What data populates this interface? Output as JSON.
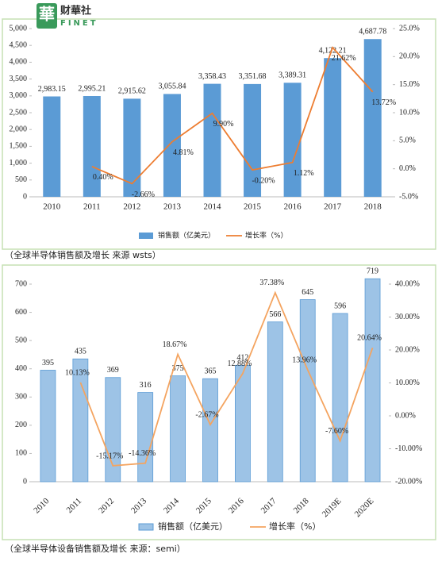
{
  "logo": {
    "mark": "華",
    "name": "财華社",
    "sub": "FINET"
  },
  "chart_data": [
    {
      "type": "combo",
      "categories": [
        "2010",
        "2011",
        "2012",
        "2013",
        "2014",
        "2015",
        "2016",
        "2017",
        "2018"
      ],
      "series": [
        {
          "name": "销售额（亿美元）",
          "color": "#5b9bd5",
          "type": "bar",
          "values": [
            2983.15,
            2995.21,
            2915.62,
            3055.84,
            3358.43,
            3351.68,
            3389.31,
            4122.21,
            4687.78
          ],
          "value_labels": [
            "2,983.15",
            "2,995.21",
            "2,915.62",
            "3,055.84",
            "3,358.43",
            "3,351.68",
            "3,389.31",
            "4,122.21",
            "4,687.78"
          ]
        },
        {
          "name": "增长率（%）",
          "color": "#ed7d31",
          "type": "line",
          "axis": "y2",
          "values": [
            null,
            0.4,
            -2.66,
            4.81,
            9.9,
            -0.2,
            1.12,
            21.62,
            13.72
          ],
          "value_labels": [
            null,
            "0.40%",
            "-2.66%",
            "4.81%",
            "9.90%",
            "-0.20%",
            "1.12%",
            "21.62%",
            "13.72%"
          ]
        }
      ],
      "ylim": [
        0,
        5000
      ],
      "yticks": [
        0,
        500,
        {
          "value": 1000,
          "label": "1,000"
        },
        {
          "value": 1500,
          "label": "1,500"
        },
        {
          "value": 2000,
          "label": "2,000"
        },
        {
          "value": 2500,
          "label": "2,500"
        },
        {
          "value": 3000,
          "label": "3,000"
        },
        {
          "value": 3500,
          "label": "3,500"
        },
        {
          "value": 4000,
          "label": "4,000"
        },
        {
          "value": 4500,
          "label": "4,500"
        },
        {
          "value": 5000,
          "label": "5,000"
        }
      ],
      "y2lim": [
        -5,
        25
      ],
      "y2ticks": [
        {
          "value": -5,
          "label": "-5.0%"
        },
        {
          "value": 0,
          "label": "0.0%"
        },
        {
          "value": 5,
          "label": "5.0%"
        },
        {
          "value": 10,
          "label": "10.0%"
        },
        {
          "value": 15,
          "label": "15.0%"
        },
        {
          "value": 20,
          "label": "20.0%"
        },
        {
          "value": 25,
          "label": "25.0%"
        }
      ],
      "legend": "bottom",
      "source": "（全球半导体销售额及增长    来源 wsts）"
    },
    {
      "type": "combo",
      "categories": [
        "2010",
        "2011",
        "2012",
        "2013",
        "2014",
        "2015",
        "2016",
        "2017",
        "2018",
        "2019E",
        "2020E"
      ],
      "series": [
        {
          "name": "销售额（亿美元）",
          "color": "#9dc3e6",
          "type": "bar",
          "values": [
            395,
            435,
            369,
            316,
            375,
            365,
            412,
            566,
            645,
            596,
            719
          ]
        },
        {
          "name": "增长率（%）",
          "color": "#f4a460",
          "type": "line",
          "axis": "y2",
          "values": [
            null,
            10.13,
            -15.17,
            -14.36,
            18.67,
            -2.67,
            12.88,
            37.38,
            13.96,
            -7.6,
            20.64
          ],
          "value_labels": [
            null,
            "10.13%",
            "-15.17%",
            "-14.36%",
            "18.67%",
            "-2.67%",
            "12.88%",
            "37.38%",
            "13.96%",
            "-7.60%",
            "20.64%"
          ]
        }
      ],
      "ylim": [
        0,
        700
      ],
      "yticks": [
        0,
        100,
        200,
        300,
        400,
        500,
        600,
        700
      ],
      "y2lim": [
        -20,
        40
      ],
      "y2ticks": [
        {
          "value": -20,
          "label": "-20.00%"
        },
        {
          "value": -10,
          "label": "-10.00%"
        },
        {
          "value": 0,
          "label": "0.00%"
        },
        {
          "value": 10,
          "label": "10.00%"
        },
        {
          "value": 20,
          "label": "20.00%"
        },
        {
          "value": 30,
          "label": "30.00%"
        },
        {
          "value": 40,
          "label": "40.00%"
        }
      ],
      "legend": "bottom",
      "source": "（全球半导体设备销售额及增长    来源：semi）"
    }
  ]
}
